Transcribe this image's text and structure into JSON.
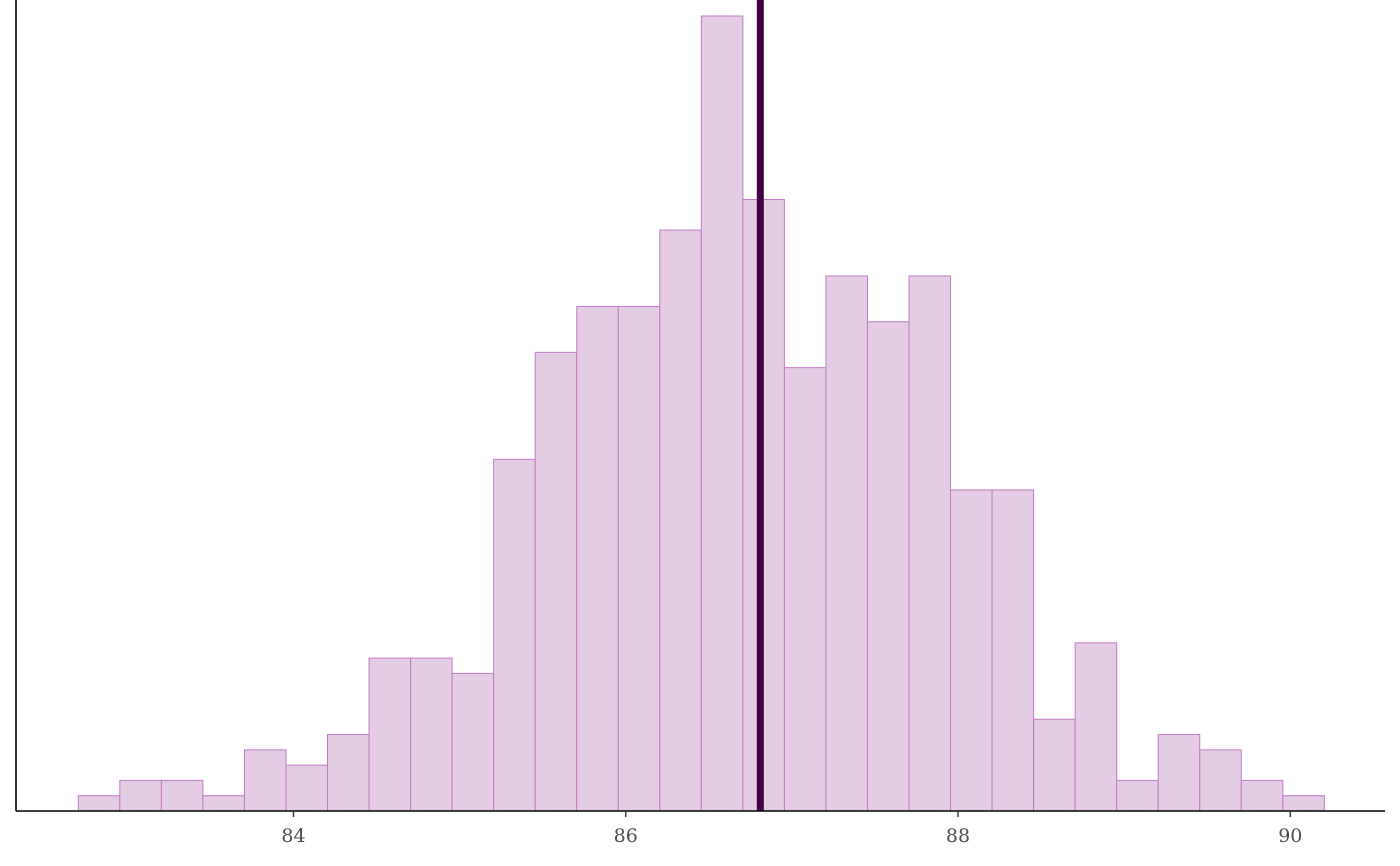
{
  "chart_data": {
    "type": "histogram",
    "title": "",
    "xlabel": "",
    "ylabel": "",
    "bin_width": 0.25,
    "bin_centers": [
      82.83,
      83.08,
      83.33,
      83.58,
      83.83,
      84.08,
      84.33,
      84.58,
      84.83,
      85.08,
      85.33,
      85.58,
      85.83,
      86.08,
      86.33,
      86.58,
      86.83,
      87.08,
      87.33,
      87.58,
      87.83,
      88.08,
      88.33,
      88.58,
      88.83,
      89.08,
      89.33,
      89.58,
      89.83,
      90.08
    ],
    "counts": [
      1,
      2,
      2,
      1,
      4,
      3,
      5,
      10,
      10,
      9,
      23,
      30,
      33,
      33,
      38,
      52,
      40,
      29,
      35,
      32,
      35,
      21,
      21,
      6,
      11,
      2,
      5,
      4,
      2,
      1
    ],
    "xlim": [
      82.33,
      90.57
    ],
    "ylim": [
      0,
      52
    ],
    "x_ticks": [
      84,
      86,
      88,
      90
    ],
    "x_tick_labels": [
      "84",
      "86",
      "88",
      "90"
    ],
    "y_ticks_shown": false,
    "grid": false,
    "vline": 86.81,
    "colors": {
      "fill": "#e4cce4",
      "stroke": "#c27ac6",
      "vline": "#440044",
      "axis": "#000000"
    }
  }
}
